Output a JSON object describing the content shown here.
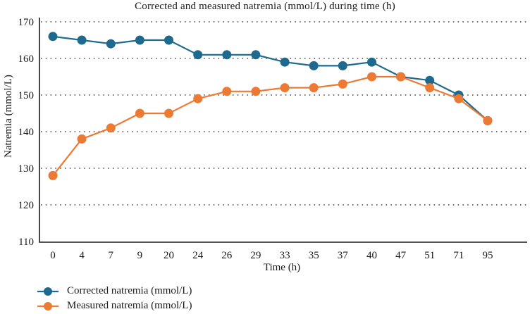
{
  "chart_data": {
    "type": "line",
    "title": "Corrected and measured natremia (mmol/L) during time (h)",
    "xlabel": "Time (h)",
    "ylabel": "Natremia (mmol/L)",
    "categories": [
      "0",
      "4",
      "7",
      "9",
      "20",
      "24",
      "26",
      "29",
      "33",
      "35",
      "37",
      "40",
      "47",
      "51",
      "71",
      "95"
    ],
    "ylim": [
      110,
      170
    ],
    "yticks": [
      110,
      120,
      130,
      140,
      150,
      160,
      170
    ],
    "grid": "horizontal-dotted",
    "legend_position": "bottom-left",
    "series": [
      {
        "name": "Corrected natremia (mmol/L)",
        "color": "#1e6a8e",
        "marker": "circle",
        "values": [
          166,
          165,
          164,
          165,
          165,
          161,
          161,
          161,
          159,
          158,
          158,
          159,
          155,
          154,
          150,
          143
        ]
      },
      {
        "name": "Measured natremia (mmol/L)",
        "color": "#ed7a33",
        "marker": "circle",
        "values": [
          128,
          138,
          141,
          145,
          145,
          149,
          151,
          151,
          152,
          152,
          153,
          155,
          155,
          152,
          149,
          143
        ]
      }
    ]
  }
}
